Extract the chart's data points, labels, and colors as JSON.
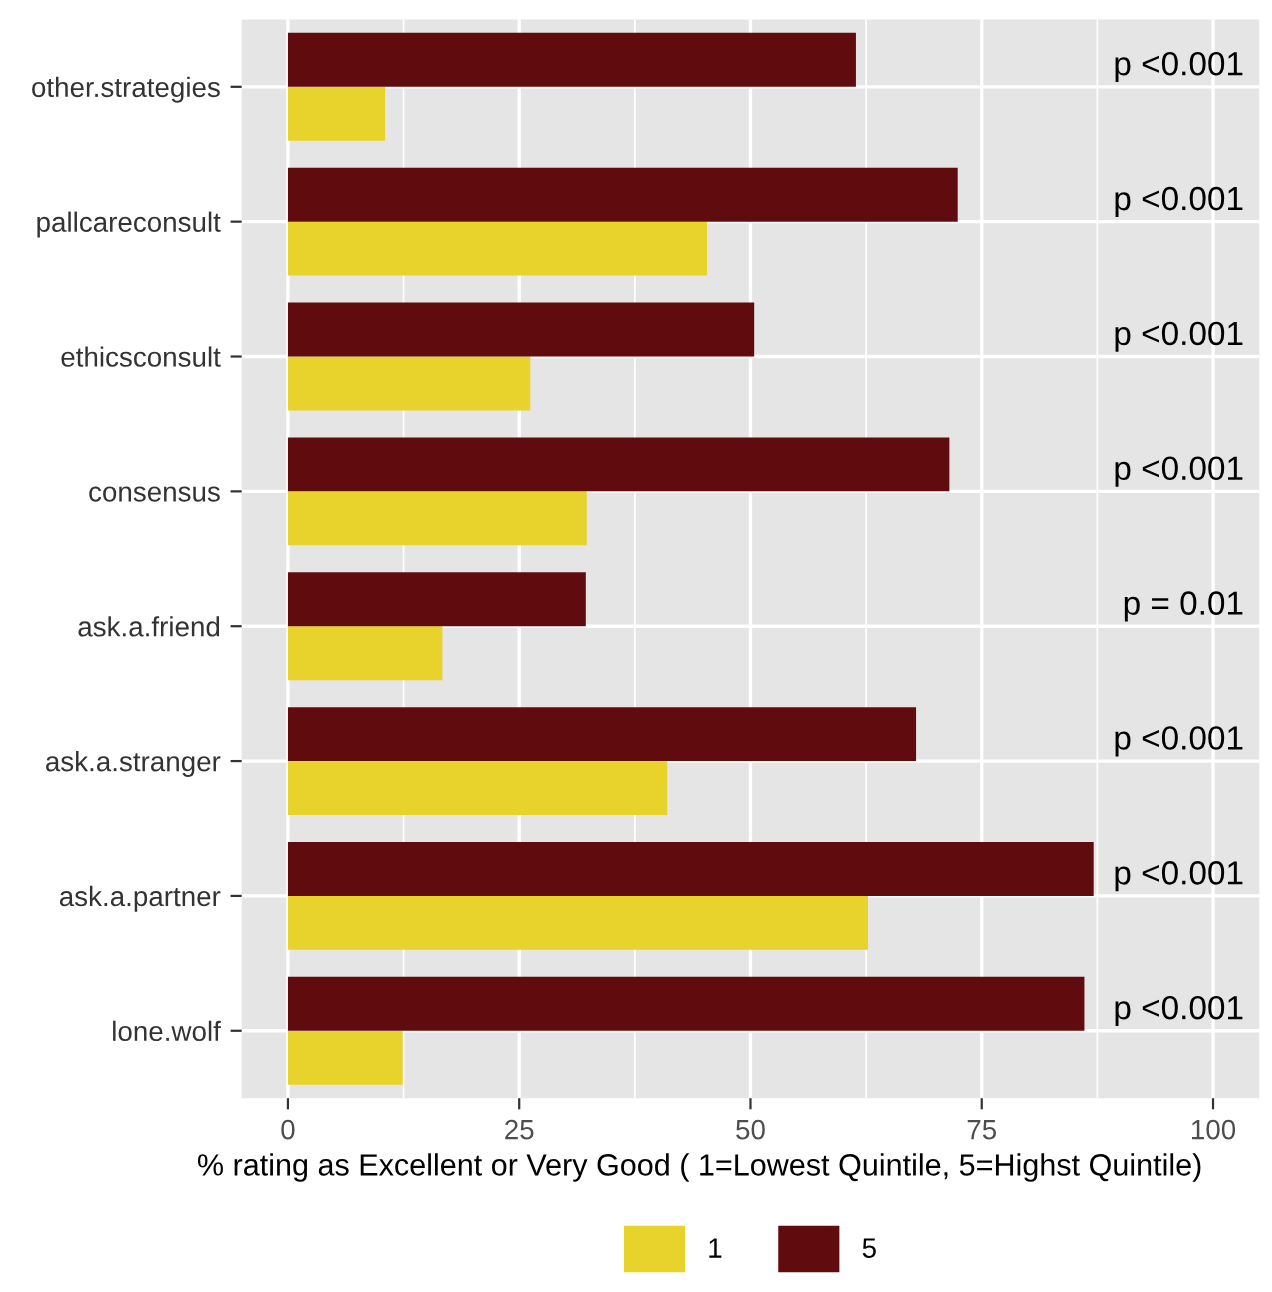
{
  "chart_data": {
    "type": "bar",
    "orientation": "horizontal",
    "categories": [
      "other.strategies",
      "pallcareconsult",
      "ethicsconsult",
      "consensus",
      "ask.a.friend",
      "ask.a.stranger",
      "ask.a.partner",
      "lone.wolf"
    ],
    "series": [
      {
        "name": "1",
        "color": "#e8d22c",
        "values": [
          10.5,
          45.3,
          26.2,
          32.3,
          16.7,
          41.0,
          62.7,
          12.4
        ]
      },
      {
        "name": "5",
        "color": "#600c0e",
        "values": [
          61.4,
          72.4,
          50.4,
          71.5,
          32.2,
          67.9,
          87.1,
          86.1
        ]
      }
    ],
    "xlabel": "% rating as Excellent or Very Good ( 1=Lowest Quintile, 5=Highst Quintile)",
    "xlim": [
      -5,
      105
    ],
    "xticks": [
      0,
      25,
      50,
      75,
      100
    ],
    "grid": true,
    "legend": "bottom",
    "annotations": [
      "p <0.001",
      "p <0.001",
      "p <0.001",
      "p <0.001",
      "p = 0.01",
      "p <0.001",
      "p <0.001",
      "p <0.001"
    ]
  }
}
